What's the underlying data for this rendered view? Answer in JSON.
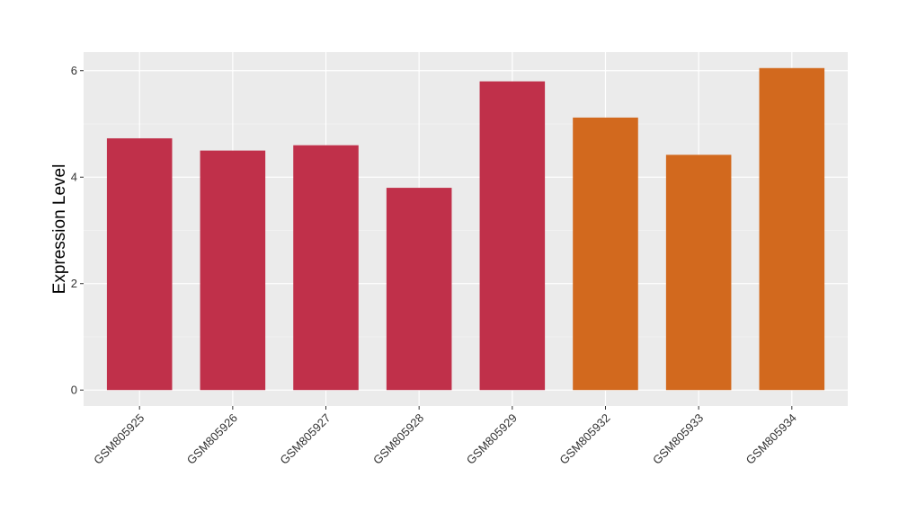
{
  "chart_data": {
    "type": "bar",
    "title": "",
    "xlabel": "",
    "ylabel": "Expression Level",
    "categories": [
      "GSM805925",
      "GSM805926",
      "GSM805927",
      "GSM805928",
      "GSM805929",
      "GSM805932",
      "GSM805933",
      "GSM805934"
    ],
    "values": [
      4.73,
      4.5,
      4.6,
      3.8,
      5.8,
      5.12,
      4.42,
      6.05
    ],
    "bar_colors": [
      "#c0304a",
      "#c0304a",
      "#c0304a",
      "#c0304a",
      "#c0304a",
      "#d2691e",
      "#d2691e",
      "#d2691e"
    ],
    "ylim": [
      -0.3,
      6.35
    ],
    "yticks": [
      0,
      2,
      4,
      6
    ],
    "ytick_labels": [
      "0",
      "2",
      "4",
      "6"
    ],
    "grid": true,
    "legend": "none"
  }
}
